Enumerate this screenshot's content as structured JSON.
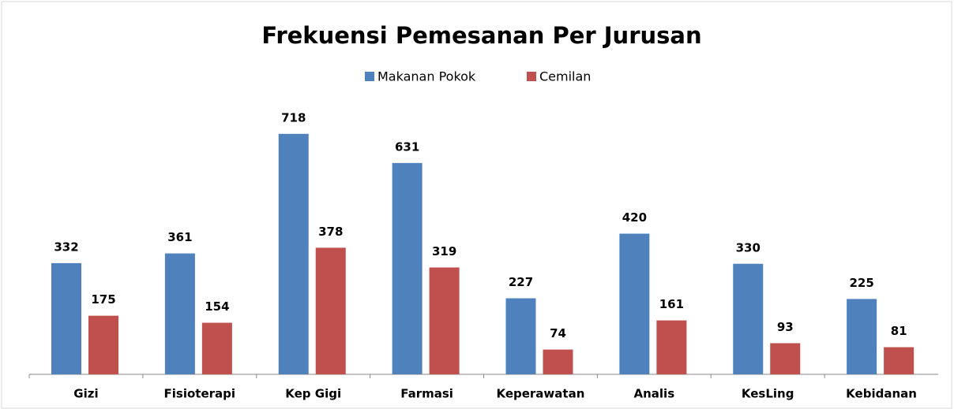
{
  "chart_data": {
    "type": "bar",
    "title": "Frekuensi Pemesanan Per Jurusan",
    "categories": [
      "Gizi",
      "Fisioterapi",
      "Kep Gigi",
      "Farmasi",
      "Keperawatan",
      "Analis",
      "KesLing",
      "Kebidanan"
    ],
    "series": [
      {
        "name": "Makanan Pokok",
        "color": "#4f81bd",
        "values": [
          332,
          361,
          718,
          631,
          227,
          420,
          330,
          225
        ]
      },
      {
        "name": "Cemilan",
        "color": "#c0504d",
        "values": [
          175,
          154,
          378,
          319,
          74,
          161,
          93,
          81
        ]
      }
    ],
    "ylim": [
      0,
      800
    ],
    "legend": "top"
  }
}
